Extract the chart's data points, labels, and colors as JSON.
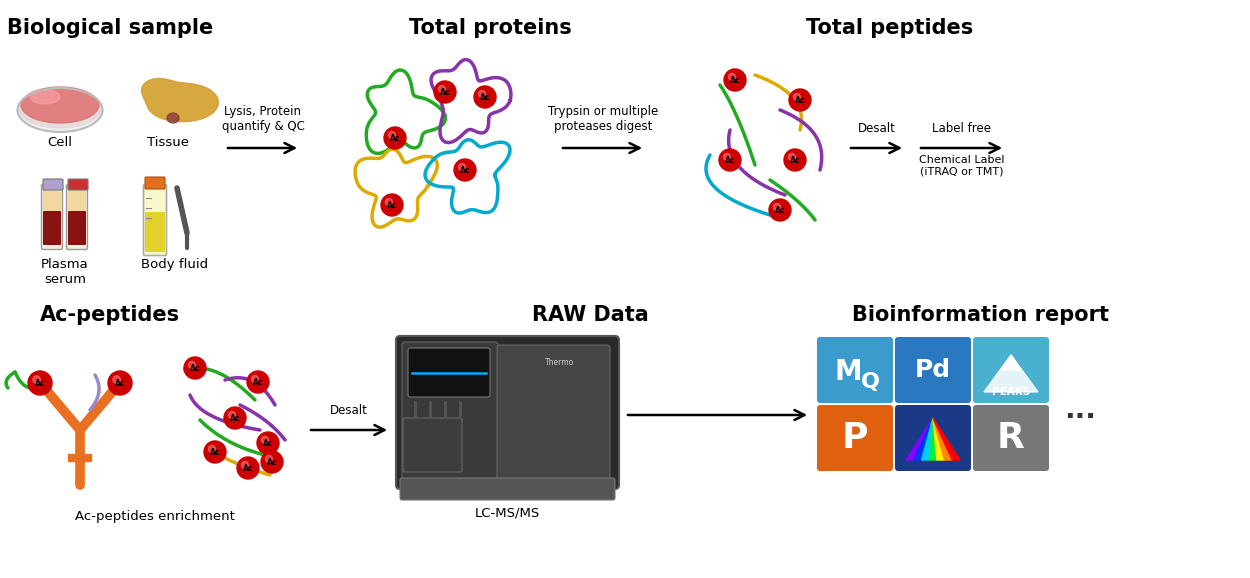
{
  "title_top_left": "Biological sample",
  "title_top_middle": "Total proteins",
  "title_top_right": "Total peptides",
  "title_bottom_left": "Ac-peptides",
  "title_bottom_middle": "RAW Data",
  "title_bottom_right": "Bioinformation report",
  "label_cell": "Cell",
  "label_tissue": "Tissue",
  "label_plasma": "Plasma\nserum",
  "label_body": "Body fluid",
  "arrow1_label": "Lysis, Protein\nquantify & QC",
  "arrow2_label": "Trypsin or multiple\nproteases digest",
  "arrow3_label": "Desalt",
  "arrow4_label_top": "Label free",
  "arrow4_label_bottom": "Chemical Label\n(iTRAQ or TMT)",
  "arrow5_label": "Desalt",
  "label_ac_enrichment": "Ac-peptides enrichment",
  "label_lcmsms": "LC-MS/MS",
  "label_dots": "...",
  "bg_color": "#ffffff",
  "title_fontsize": 15,
  "label_fontsize": 9.5,
  "arrow_label_fontsize": 8.5,
  "protein_colors": [
    "#22aa22",
    "#8833aa",
    "#ddaa00",
    "#00aacc"
  ],
  "peptide_colors": [
    "#00aacc",
    "#8833aa",
    "#22aa22",
    "#ddaa00"
  ],
  "ac_ball_color": "#cc0000",
  "icon_mq_color": "#3a9bcc",
  "icon_pd_color": "#2a78c0",
  "icon_peaks_color": "#4ab0d0",
  "icon_p_color": "#e06010",
  "icon_spectrum_color": "#1a3a88",
  "icon_r_color": "#777777"
}
